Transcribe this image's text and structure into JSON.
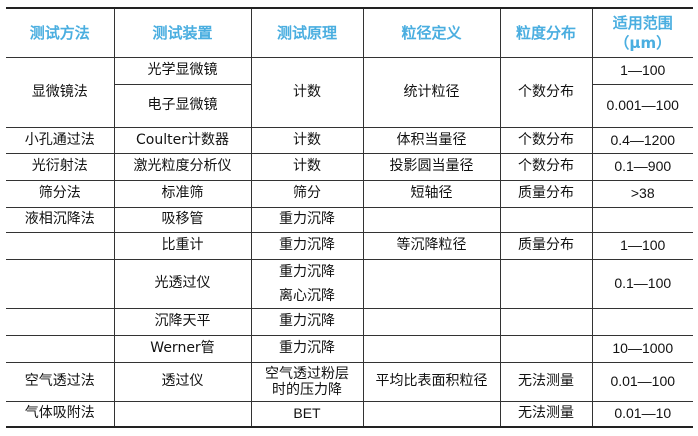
{
  "header_color": "#4aaee0",
  "headers": [
    "测试方法",
    "测试装置",
    "测试原理",
    "粒径定义",
    "粒度分布",
    "适用范围（μm）"
  ],
  "rows": {
    "microscope": {
      "method": "显微镜法",
      "device1": "光学显微镜",
      "device2": "电子显微镜",
      "principle": "计数",
      "definition": "统计粒径",
      "distribution": "个数分布",
      "range1": "1—100",
      "range2": "0.001—100"
    },
    "coulter": {
      "method": "小孔通过法",
      "device": "Coulter计数器",
      "principle": "计数",
      "definition": "体积当量径",
      "distribution": "个数分布",
      "range": "0.4—1200"
    },
    "laser": {
      "method": "光衍射法",
      "device": "激光粒度分析仪",
      "principle": "计数",
      "definition": "投影圆当量径",
      "distribution": "个数分布",
      "range": "0.1—900"
    },
    "sieve": {
      "method": "筛分法",
      "device": "标准筛",
      "principle": "筛分",
      "definition": "短轴径",
      "distribution": "质量分布",
      "range": ">38"
    },
    "pipette": {
      "method": "液相沉降法",
      "device": "吸移管",
      "principle": "重力沉降",
      "definition": "",
      "distribution": "",
      "range": ""
    },
    "hydrometer": {
      "method": "",
      "device": "比重计",
      "principle": "重力沉降",
      "definition": "等沉降粒径",
      "distribution": "质量分布",
      "range": "1—100"
    },
    "light": {
      "method": "",
      "device": "光透过仪",
      "principle1": "重力沉降",
      "principle2": "离心沉降",
      "definition": "",
      "distribution": "",
      "range": "0.1—100"
    },
    "balance": {
      "method": "",
      "device": "沉降天平",
      "principle": "重力沉降",
      "definition": "",
      "distribution": "",
      "range": ""
    },
    "werner": {
      "method": "",
      "device": "Werner管",
      "principle": "重力沉降",
      "definition": "",
      "distribution": "",
      "range": "10—1000"
    },
    "air": {
      "method": "空气透过法",
      "device": "透过仪",
      "principle": "空气透过粉层时的压力降",
      "definition": "平均比表面积粒径",
      "distribution": "无法测量",
      "range": "0.01—100"
    },
    "gas": {
      "method": "气体吸附法",
      "device": "",
      "principle": "BET",
      "definition": "",
      "distribution": "无法测量",
      "range": "0.01—10"
    }
  }
}
